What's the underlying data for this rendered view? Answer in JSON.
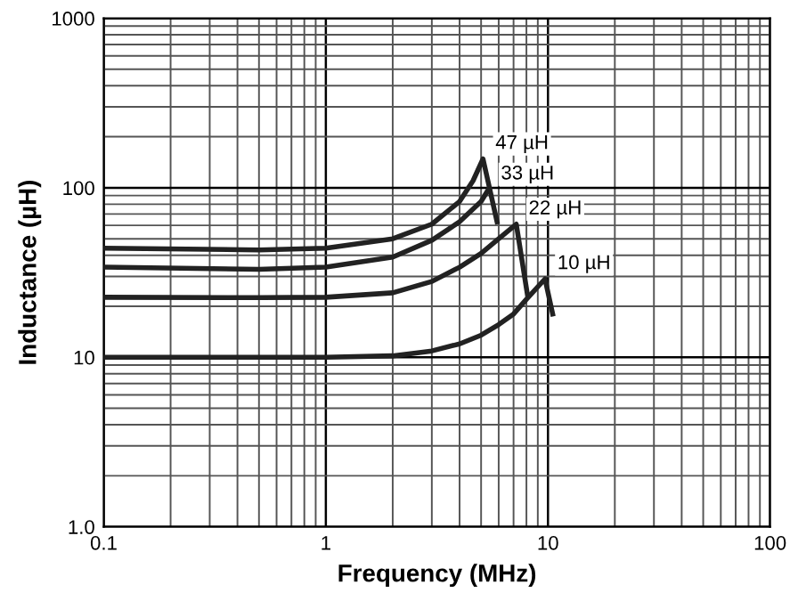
{
  "chart_data": {
    "type": "line",
    "xlabel": "Frequency (MHz)",
    "ylabel": "Inductance (µH)",
    "log": "xy",
    "grid": true,
    "legend": false,
    "xlim": [
      0.1,
      100
    ],
    "xticks": [
      0.1,
      1,
      10,
      100
    ],
    "ylim": [
      1,
      1000
    ],
    "yticks": [
      {
        "value": 1,
        "label": "1.0"
      },
      10,
      100,
      1000
    ],
    "series": [
      {
        "color": "#222222",
        "x": [
          0.1,
          0.5,
          1,
          2,
          3,
          4,
          4.6,
          5.1,
          5.9
        ],
        "values": [
          44,
          43,
          44,
          50,
          61,
          83,
          110,
          148,
          63
        ]
      },
      {
        "color": "#222222",
        "x": [
          0.1,
          0.5,
          1,
          2,
          3,
          4,
          5,
          5.4
        ],
        "values": [
          34,
          33,
          34,
          39,
          49,
          63,
          83,
          98
        ]
      },
      {
        "color": "#222222",
        "x": [
          0.1,
          0.5,
          1,
          2,
          3,
          4,
          5,
          6,
          7.2,
          8.1
        ],
        "values": [
          22.6,
          22.5,
          22.6,
          24,
          28,
          34,
          41,
          50,
          61,
          23
        ]
      },
      {
        "color": "#222222",
        "x": [
          0.1,
          0.5,
          1,
          2,
          3,
          4,
          5,
          6,
          7,
          8,
          9.7,
          10.5
        ],
        "values": [
          10,
          10,
          10,
          10.2,
          10.9,
          12,
          13.5,
          15.6,
          18,
          22,
          29,
          18
        ]
      }
    ],
    "annotations": [
      {
        "text": "47 µH",
        "x": 5.1,
        "y": 148
      },
      {
        "text": "33 µH",
        "x": 5.4,
        "y": 98
      },
      {
        "text": "22 µH",
        "x": 7.2,
        "y": 61
      },
      {
        "text": "10 µH",
        "x": 9.7,
        "y": 29
      }
    ]
  }
}
